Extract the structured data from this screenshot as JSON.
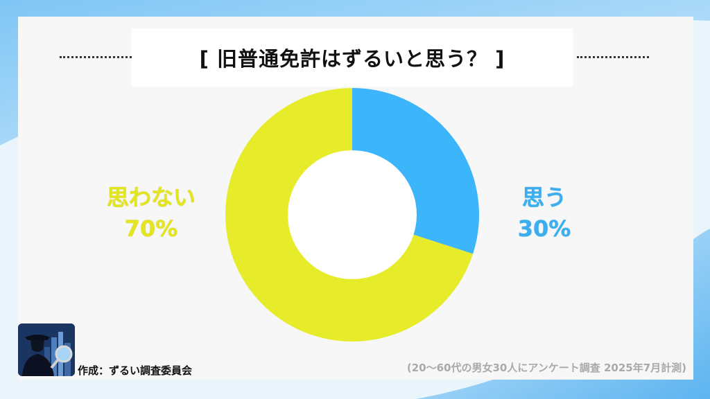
{
  "header": {
    "title": "[ 旧普通免許はずるいと思う？ ]"
  },
  "chart_data": {
    "type": "pie",
    "title": "[ 旧普通免許はずるいと思う？ ]",
    "slices": [
      {
        "label": "思う",
        "value": 30,
        "value_label": "30%",
        "color": "#3db5fb"
      },
      {
        "label": "思わない",
        "value": 70,
        "value_label": "70%",
        "color": "#e6ec29"
      }
    ],
    "donut": true
  },
  "footer": {
    "credit": "作成：ずるい調査委員会",
    "source": "(20～60代の男女30人にアンケート調査 2025年7月計測)"
  },
  "colors": {
    "accent_blue": "#3db5fb",
    "accent_yellow": "#e6ec29"
  },
  "logo": {
    "icon": "detective-magnifier-icon"
  }
}
